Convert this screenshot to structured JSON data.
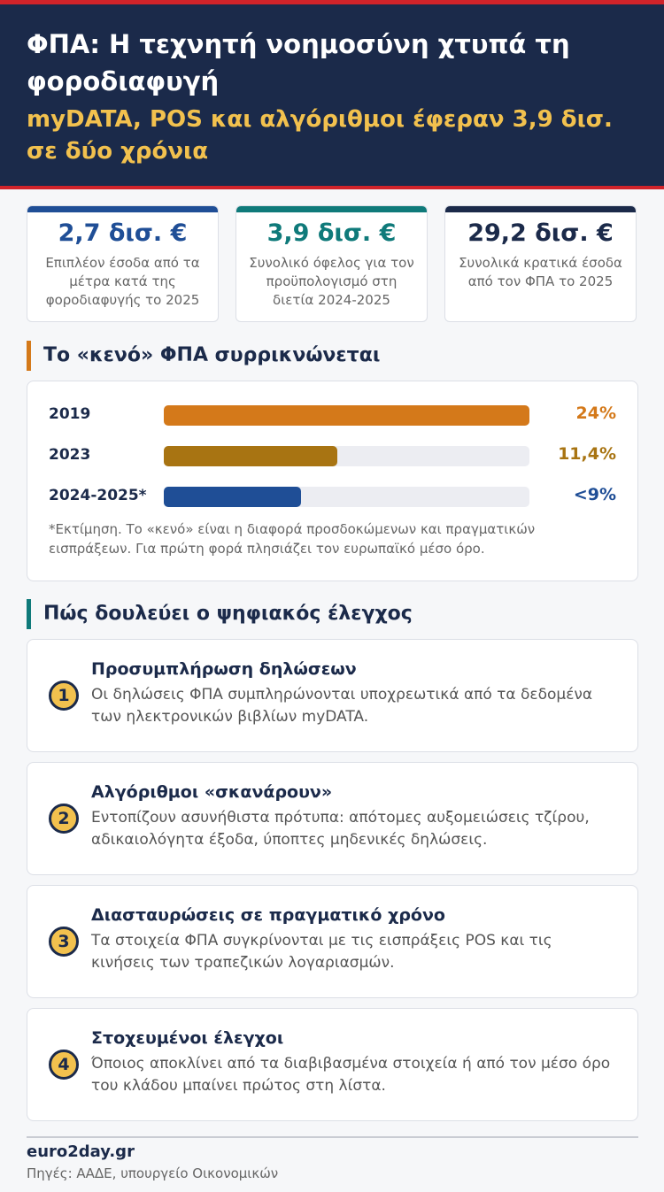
{
  "header": {
    "title": "ΦΠΑ: Η τεχνητή νοημοσύνη χτυπά τη φοροδιαφυγή",
    "subtitle": "myDATA, POS και αλγόριθμοι έφεραν 3,9 δισ. σε δύο χρόνια"
  },
  "stats": [
    {
      "value": "2,7 δισ. €",
      "label": "Επιπλέον έσοδα από τα μέτρα κατά της φοροδιαφυγής το 2025",
      "color": "#1f4e96"
    },
    {
      "value": "3,9 δισ. €",
      "label": "Συνολικό όφελος για τον προϋπολογισμό στη διετία 2024-2025",
      "color": "#0f7a7a"
    },
    {
      "value": "29,2 δισ. €",
      "label": "Συνολικά κρατικά έσοδα από τον ΦΠΑ το 2025",
      "color": "#1b2a4a"
    }
  ],
  "chart_data": {
    "type": "bar",
    "orientation": "horizontal",
    "title": "Το «κενό» ΦΠΑ συρρικνώνεται",
    "categories": [
      "2019",
      "2023",
      "2024-2025*"
    ],
    "values": [
      24,
      11.4,
      9
    ],
    "value_labels": [
      "24%",
      "11,4%",
      "<9%"
    ],
    "colors": [
      "#d4791a",
      "#a87412",
      "#1f4e96"
    ],
    "xlim": [
      0,
      24
    ],
    "note": "*Εκτίμηση. Το «κενό» είναι η διαφορά προσδοκώμενων και πραγματικών εισπράξεων. Για πρώτη φορά πλησιάζει τον ευρωπαϊκό μέσο όρο."
  },
  "steps_section": {
    "title": "Πώς δουλεύει ο ψηφιακός έλεγχος",
    "steps": [
      {
        "number": 1,
        "title": "Προσυμπλήρωση δηλώσεων",
        "text": "Οι δηλώσεις ΦΠΑ συμπληρώνονται υποχρεωτικά από τα δεδομένα των ηλεκτρονικών βιβλίων myDATA."
      },
      {
        "number": 2,
        "title": "Αλγόριθμοι «σκανάρουν»",
        "text": "Εντοπίζουν ασυνήθιστα πρότυπα: απότομες αυξομειώσεις τζίρου, αδικαιολόγητα έξοδα, ύποπτες μηδενικές δηλώσεις."
      },
      {
        "number": 3,
        "title": "Διασταυρώσεις σε πραγματικό χρόνο",
        "text": "Τα στοιχεία ΦΠΑ συγκρίνονται με τις εισπράξεις POS και τις κινήσεις των τραπεζικών λογαριασμών."
      },
      {
        "number": 4,
        "title": "Στοχευμένοι έλεγχοι",
        "text": "Όποιος αποκλίνει από τα διαβιβασμένα στοιχεία ή από τον μέσο όρο του κλάδου μπαίνει πρώτος στη λίστα."
      }
    ]
  },
  "footer": {
    "brand": "euro2day.gr",
    "source": "Πηγές: ΑΑΔΕ, υπουργείο Οικονομικών"
  }
}
